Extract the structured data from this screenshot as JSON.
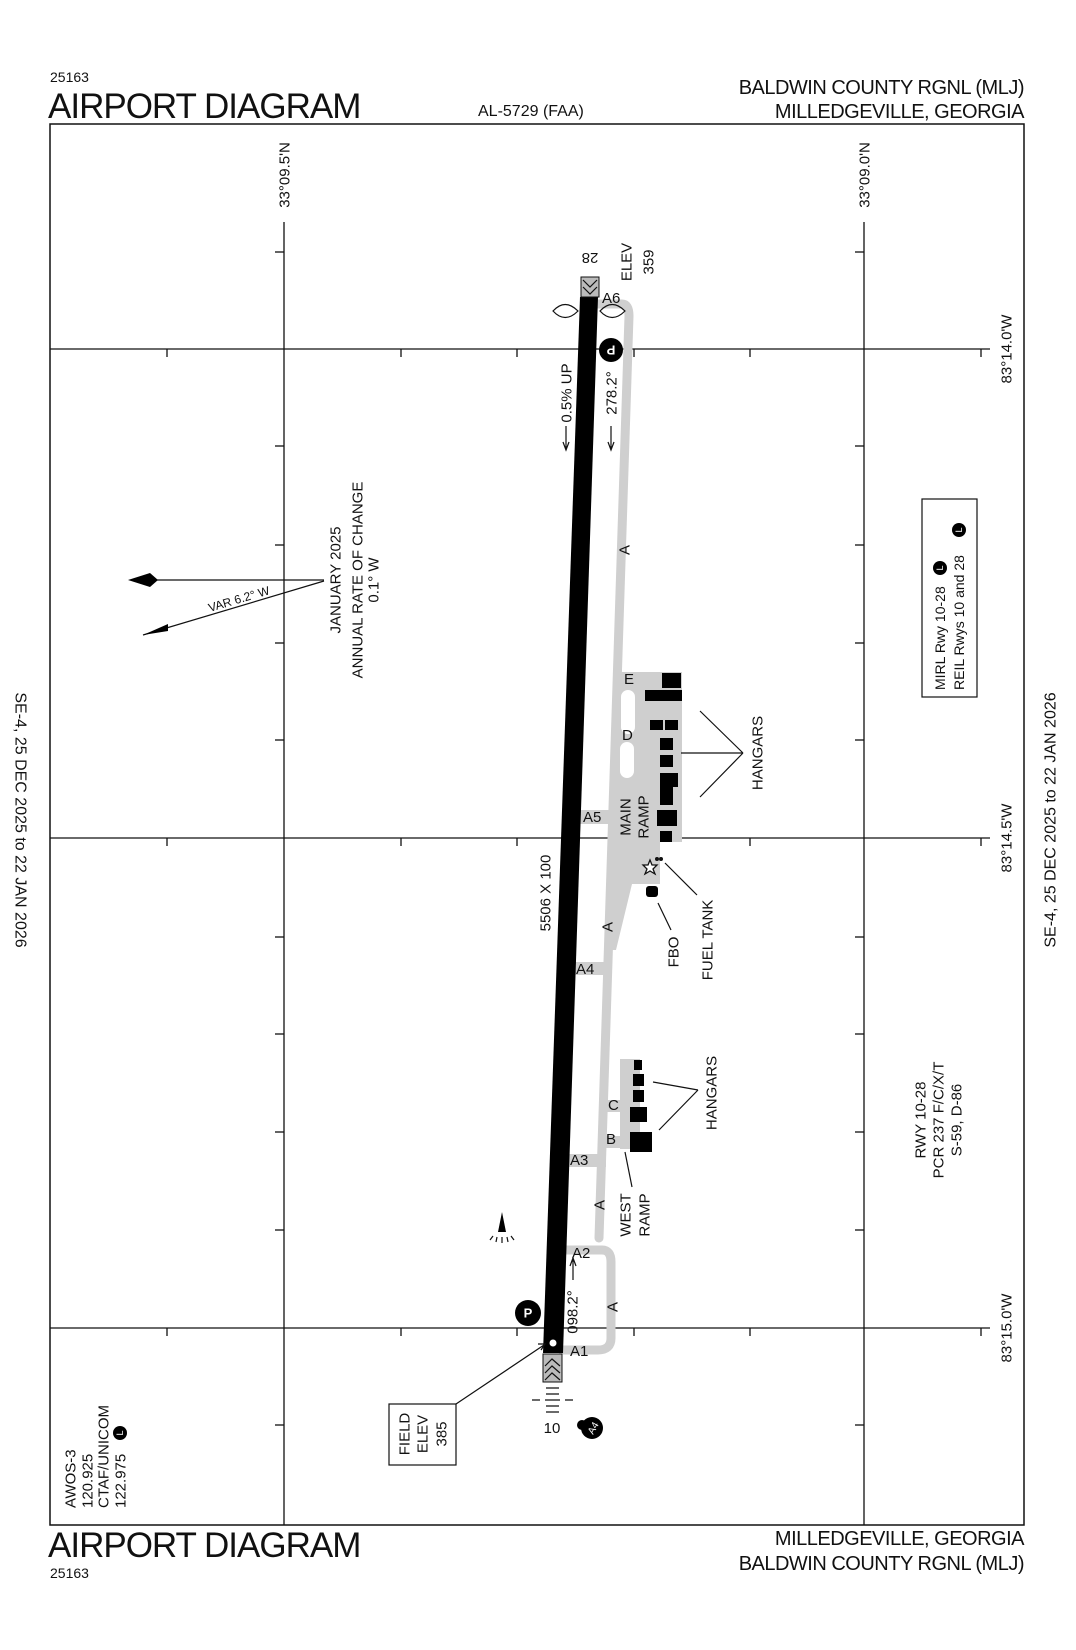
{
  "header": {
    "chart_number": "25163",
    "title": "AIRPORT DIAGRAM",
    "procedure_id": "AL-5729 (FAA)",
    "airport_name": "BALDWIN COUNTY RGNL (MLJ)",
    "location": "MILLEDGEVILLE, GEORGIA"
  },
  "footer": {
    "chart_number": "25163",
    "title": "AIRPORT DIAGRAM",
    "location": "MILLEDGEVILLE, GEORGIA",
    "airport_name": "BALDWIN COUNTY RGNL (MLJ)"
  },
  "effective_dates": {
    "left": "SE-4,  25 DEC 2025  to  22 JAN 2026",
    "right": "SE-4,  25 DEC 2025  to  22 JAN 2026"
  },
  "grid": {
    "latitudes": [
      "33°09.5'N",
      "33°09.0'N"
    ],
    "longitudes": [
      "83°14.0'W",
      "83°14.5'W",
      "83°15.0'W"
    ]
  },
  "runway": {
    "end_28": {
      "label": "28",
      "elev_label": "ELEV",
      "elev": "359",
      "heading": "278.2°",
      "gradient": "0.5% UP"
    },
    "end_10": {
      "label": "10",
      "heading": "098.2°"
    },
    "dimensions": "5506 X 100",
    "color": "#000000"
  },
  "taxiways": {
    "color": "#cfcfcf",
    "labels": {
      "a": "A",
      "a1": "A1",
      "a2": "A2",
      "a3": "A3",
      "a4": "A4",
      "a5": "A5",
      "a6": "A6",
      "b": "B",
      "c": "C",
      "d": "D",
      "e": "E"
    }
  },
  "features": {
    "main_ramp": [
      "MAIN",
      "RAMP"
    ],
    "west_ramp": [
      "WEST",
      "RAMP"
    ],
    "hangars": "HANGARS",
    "fbo": "FBO",
    "fuel_tank": "FUEL TANK",
    "parking_symbol": "P",
    "hot_spot_symbol": "A4",
    "lighting_symbol": "L"
  },
  "field_elev": {
    "line1": "FIELD",
    "line2": "ELEV",
    "value": "385"
  },
  "magnetic_variation": {
    "date": "JANUARY 2025",
    "rate_label": "ANNUAL RATE OF CHANGE",
    "rate": "0.1° W",
    "variation": "VAR 6.2°   W"
  },
  "lighting_notes": {
    "line1": "MIRL Rwy 10-28",
    "line2": "REIL Rwys 10 and 28"
  },
  "runway_data": {
    "line1": "RWY 10-28",
    "line2": "PCR 237 F/C/X/T",
    "line3": "S-59, D-86"
  },
  "communications": {
    "awos": "AWOS-3",
    "awos_freq": "120.925",
    "ctaf_label": "CTAF/UNICOM",
    "ctaf_freq": "122.975"
  }
}
